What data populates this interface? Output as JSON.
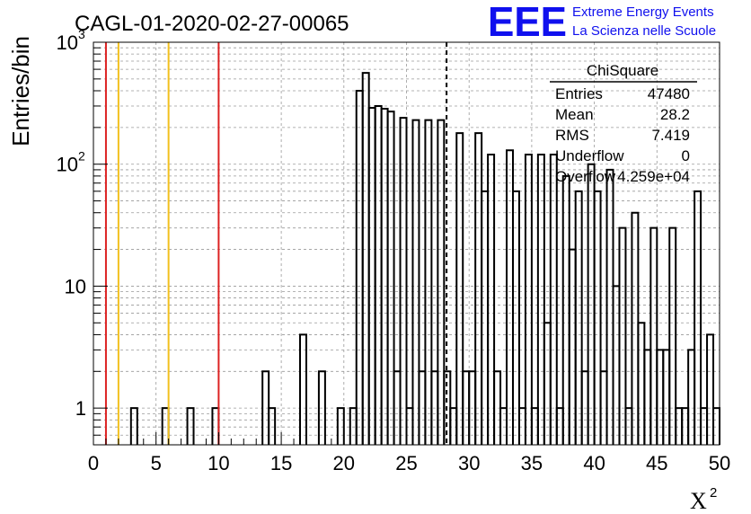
{
  "chart_data": {
    "type": "bar",
    "style": "step-histogram",
    "title": "CAGL-01-2020-02-27-00065",
    "xlabel": "X",
    "xlabel_superscript": "2",
    "ylabel": "Entries/bin",
    "xlim": [
      0,
      50
    ],
    "ylim": [
      0.5,
      1000
    ],
    "yscale": "log",
    "grid": true,
    "bin_width": 0.5,
    "x_ticks": [
      "0",
      "5",
      "10",
      "15",
      "20",
      "25",
      "30",
      "35",
      "40",
      "45",
      "50"
    ],
    "y_ticks": [
      {
        "value": 1,
        "label": "1"
      },
      {
        "value": 10,
        "label": "10"
      },
      {
        "value": 100,
        "base": "10",
        "exp": "2"
      },
      {
        "value": 1000,
        "base": "10",
        "exp": "3"
      }
    ],
    "bins": [
      {
        "x": 3.0,
        "y": 1
      },
      {
        "x": 5.5,
        "y": 1
      },
      {
        "x": 7.5,
        "y": 1
      },
      {
        "x": 9.5,
        "y": 1
      },
      {
        "x": 13.5,
        "y": 2
      },
      {
        "x": 14.0,
        "y": 1
      },
      {
        "x": 16.5,
        "y": 4
      },
      {
        "x": 18.0,
        "y": 2
      },
      {
        "x": 19.5,
        "y": 1
      },
      {
        "x": 20.5,
        "y": 1
      },
      {
        "x": 21.0,
        "y": 400
      },
      {
        "x": 21.5,
        "y": 560
      },
      {
        "x": 22.0,
        "y": 290
      },
      {
        "x": 22.5,
        "y": 300
      },
      {
        "x": 23.0,
        "y": 285
      },
      {
        "x": 23.5,
        "y": 270
      },
      {
        "x": 24.0,
        "y": 2
      },
      {
        "x": 24.5,
        "y": 240
      },
      {
        "x": 25.0,
        "y": 1
      },
      {
        "x": 25.5,
        "y": 230
      },
      {
        "x": 26.0,
        "y": 2
      },
      {
        "x": 26.5,
        "y": 230
      },
      {
        "x": 27.0,
        "y": 2
      },
      {
        "x": 27.5,
        "y": 230
      },
      {
        "x": 28.0,
        "y": 2
      },
      {
        "x": 28.5,
        "y": 1
      },
      {
        "x": 29.0,
        "y": 180
      },
      {
        "x": 29.5,
        "y": 2
      },
      {
        "x": 30.0,
        "y": 2
      },
      {
        "x": 30.5,
        "y": 180
      },
      {
        "x": 31.0,
        "y": 60
      },
      {
        "x": 31.5,
        "y": 120
      },
      {
        "x": 32.0,
        "y": 2
      },
      {
        "x": 32.5,
        "y": 1
      },
      {
        "x": 33.0,
        "y": 130
      },
      {
        "x": 33.5,
        "y": 60
      },
      {
        "x": 34.0,
        "y": 1
      },
      {
        "x": 34.5,
        "y": 120
      },
      {
        "x": 35.0,
        "y": 1
      },
      {
        "x": 35.5,
        "y": 120
      },
      {
        "x": 36.0,
        "y": 5
      },
      {
        "x": 36.5,
        "y": 120
      },
      {
        "x": 37.0,
        "y": 1
      },
      {
        "x": 37.5,
        "y": 80
      },
      {
        "x": 38.0,
        "y": 20
      },
      {
        "x": 38.5,
        "y": 60
      },
      {
        "x": 39.0,
        "y": 2
      },
      {
        "x": 39.5,
        "y": 100
      },
      {
        "x": 40.0,
        "y": 60
      },
      {
        "x": 40.5,
        "y": 2
      },
      {
        "x": 41.0,
        "y": 90
      },
      {
        "x": 41.5,
        "y": 10
      },
      {
        "x": 42.0,
        "y": 30
      },
      {
        "x": 42.5,
        "y": 1
      },
      {
        "x": 43.0,
        "y": 40
      },
      {
        "x": 43.5,
        "y": 5
      },
      {
        "x": 44.0,
        "y": 3
      },
      {
        "x": 44.5,
        "y": 30
      },
      {
        "x": 45.0,
        "y": 3
      },
      {
        "x": 45.5,
        "y": 3
      },
      {
        "x": 46.0,
        "y": 30
      },
      {
        "x": 46.5,
        "y": 1
      },
      {
        "x": 47.0,
        "y": 1
      },
      {
        "x": 47.5,
        "y": 3
      },
      {
        "x": 48.0,
        "y": 60
      },
      {
        "x": 48.5,
        "y": 1
      },
      {
        "x": 49.0,
        "y": 4
      },
      {
        "x": 49.5,
        "y": 1
      }
    ],
    "mean_marker": {
      "x": 28.2,
      "style": "dashed",
      "color": "#000000"
    },
    "vertical_lines": [
      {
        "x": 1,
        "color": "#dd2222"
      },
      {
        "x": 2,
        "color": "#f2c01e"
      },
      {
        "x": 6,
        "color": "#f2c01e"
      },
      {
        "x": 10,
        "color": "#dd2222"
      }
    ],
    "stats_box": {
      "title": "ChiSquare",
      "rows": [
        {
          "label": "Entries",
          "value": "47480"
        },
        {
          "label": "Mean",
          "value": "28.2"
        },
        {
          "label": "RMS",
          "value": "7.419"
        },
        {
          "label": "Underflow",
          "value": "0"
        },
        {
          "label": "Overflow",
          "value": "4.259e+04"
        }
      ]
    }
  },
  "logo": {
    "mark": "EEE",
    "line1": "Extreme Energy Events",
    "line2": "La Scienza nelle Scuole",
    "color": "#1010ee"
  }
}
